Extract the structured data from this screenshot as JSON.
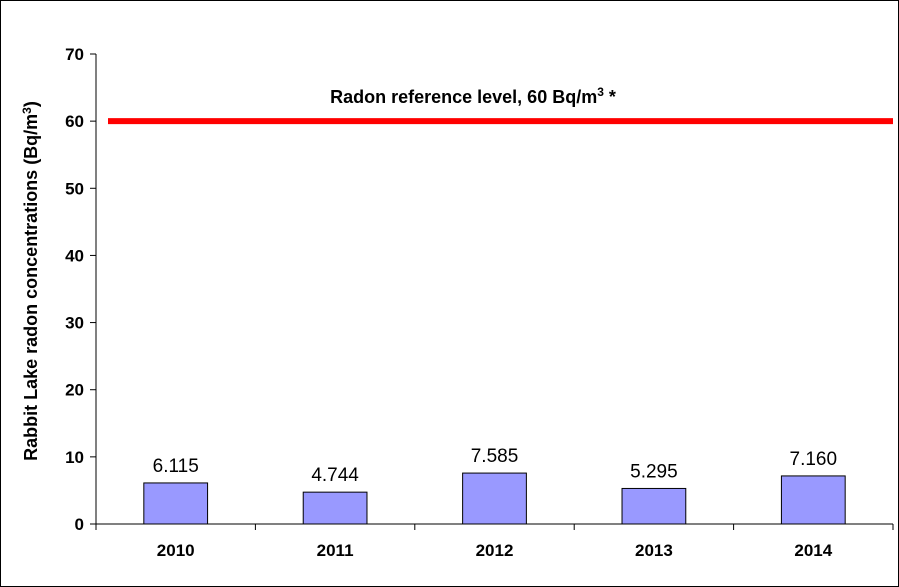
{
  "chart_data": {
    "type": "bar",
    "categories": [
      "2010",
      "2011",
      "2012",
      "2013",
      "2014"
    ],
    "values": [
      6.115,
      4.744,
      7.585,
      5.295,
      7.16
    ],
    "data_labels": [
      "6.115",
      "4.744",
      "7.585",
      "5.295",
      "7.160"
    ],
    "ylabel": "Rabbit Lake radon concentrations (Bq/m",
    "ylabel_sup": "3",
    "ylabel_end": ")",
    "ylim": [
      0,
      70
    ],
    "yticks": [
      0,
      10,
      20,
      30,
      40,
      50,
      60,
      70
    ],
    "grid": false,
    "bar_color": "#9999ff",
    "reference_line": {
      "value": 60,
      "color": "#ff0000",
      "label": "Radon reference level, 60 Bq/m",
      "label_sup": "3",
      "label_end": " *"
    }
  }
}
